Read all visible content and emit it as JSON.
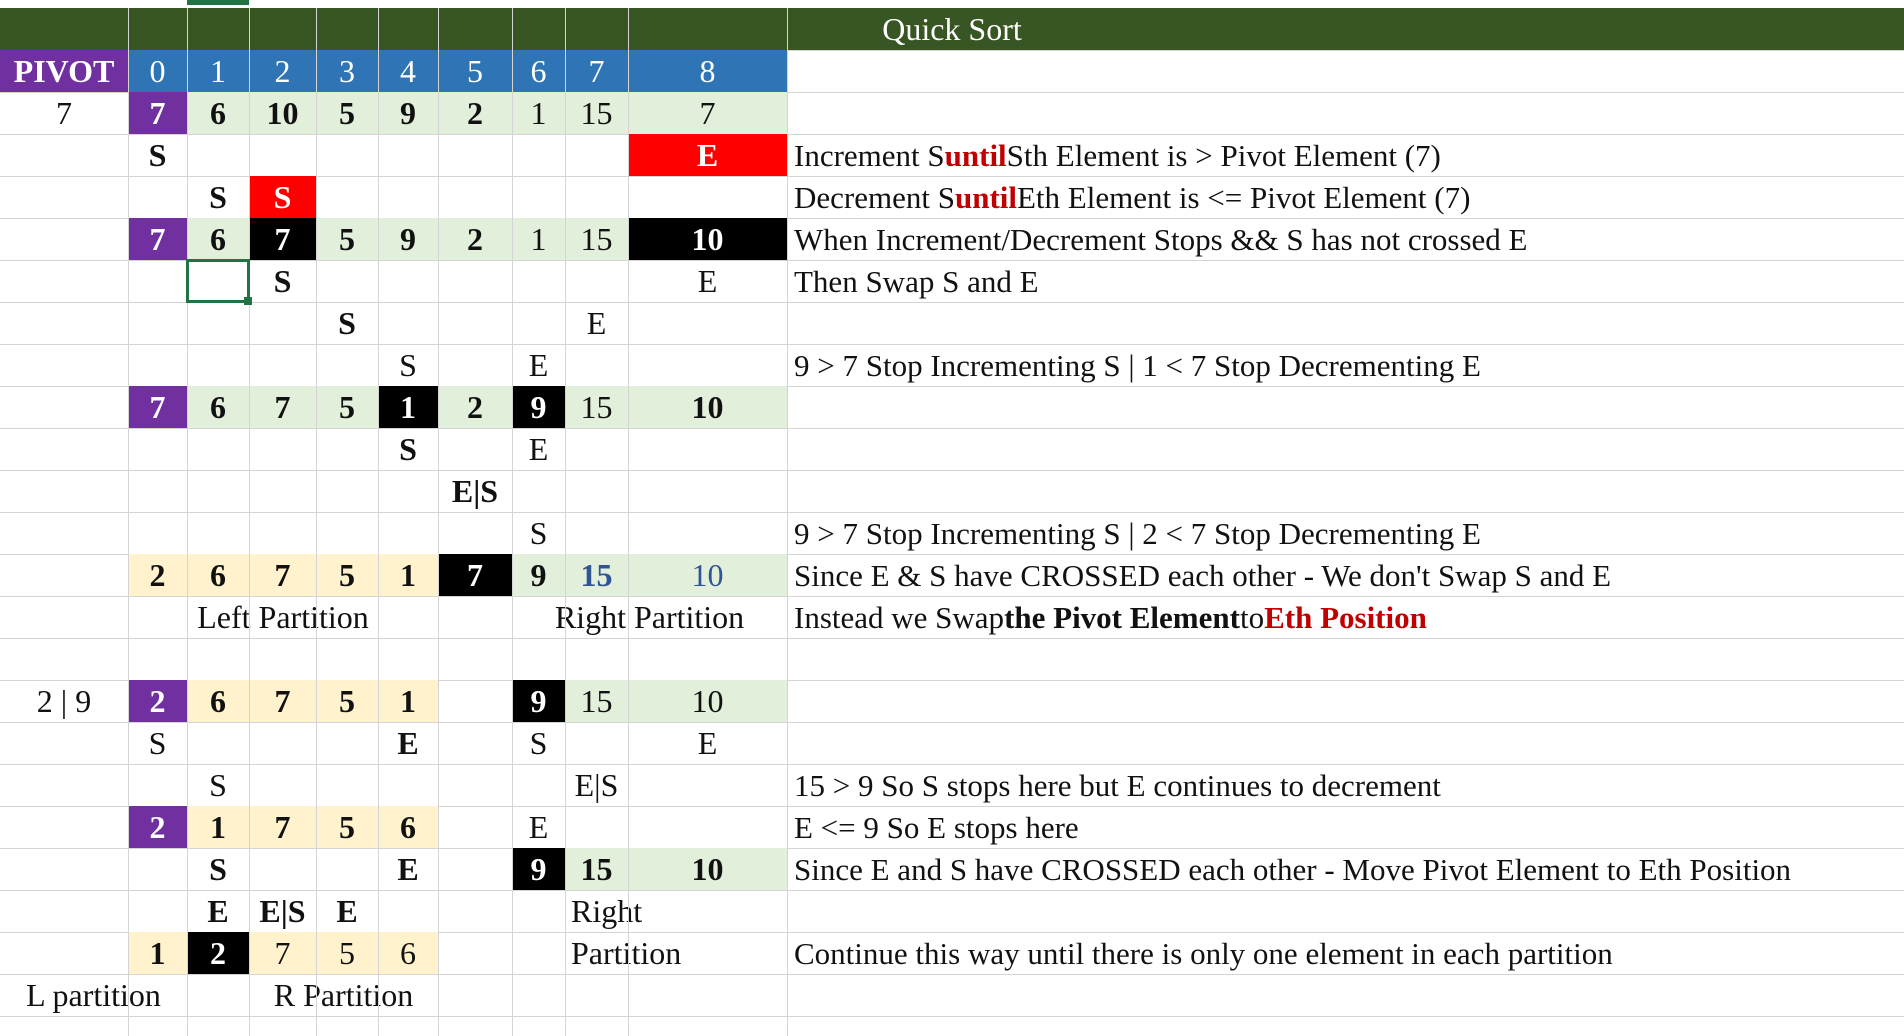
{
  "title": "Quick Sort",
  "header": {
    "pivot_label": "PIVOT",
    "indices": [
      "0",
      "1",
      "2",
      "3",
      "4",
      "5",
      "6",
      "7",
      "8"
    ]
  },
  "pivot_values": {
    "first": "7",
    "second": "2 | 9"
  },
  "grid": {
    "r1": [
      "7",
      "6",
      "10",
      "5",
      "9",
      "2",
      "1",
      "15",
      "7"
    ],
    "r2": {
      "c0": "S",
      "c8": "E"
    },
    "r3": {
      "c1": "S",
      "c2": "S"
    },
    "r4": [
      "7",
      "6",
      "7",
      "5",
      "9",
      "2",
      "1",
      "15",
      "10"
    ],
    "r5": {
      "c2": "S",
      "c8": "E"
    },
    "r6": {
      "c3": "S",
      "c7": "E"
    },
    "r7": {
      "c4": "S",
      "c6": "E"
    },
    "r8": [
      "7",
      "6",
      "7",
      "5",
      "1",
      "2",
      "9",
      "15",
      "10"
    ],
    "r9": {
      "c4": "S",
      "c6": "E"
    },
    "r10": {
      "c5": "E|S"
    },
    "r11": {
      "c6": "S"
    },
    "r12": [
      "2",
      "6",
      "7",
      "5",
      "1",
      "7",
      "9",
      "15",
      "10"
    ],
    "r13": {
      "left": "Left Partition",
      "right": "Right Partition"
    },
    "r15": [
      "2",
      "6",
      "7",
      "5",
      "1",
      "",
      "9",
      "15",
      "10"
    ],
    "r16": {
      "c0": "S",
      "c4": "E",
      "c6": "S",
      "c8": "E"
    },
    "r17": {
      "c1": "S",
      "c7": "E|S"
    },
    "r18": {
      "c0": "2",
      "c1": "1",
      "c2": "7",
      "c3": "5",
      "c4": "6",
      "c6": "E"
    },
    "r19": {
      "c1": "S",
      "c4": "E",
      "c6": "9",
      "c7": "15",
      "c8": "10"
    },
    "r20": {
      "c1": "E",
      "c2": "E|S",
      "c3": "E",
      "right": "Right"
    },
    "r21": {
      "c0": "1",
      "c1": "2",
      "c2": "7",
      "c3": "5",
      "c4": "6",
      "right": "Partition"
    },
    "r22": {
      "left": "L partition",
      "right": "R Partition"
    }
  },
  "notes": {
    "n1": {
      "a": "Increment S ",
      "b": "until",
      "c": " Sth Element is > Pivot Element (7)"
    },
    "n2": {
      "a": "Decrement S ",
      "b": "until",
      "c": " Eth Element is <= Pivot Element (7)"
    },
    "n3": "When Increment/Decrement Stops && S has not crossed E",
    "n4": "Then Swap S and E",
    "n5": "9 > 7 Stop Incrementing S  | 1 < 7 Stop Decrementing E",
    "n6": "9 > 7 Stop Incrementing S  | 2 < 7 Stop Decrementing E",
    "n7": "Since E & S have CROSSED each other - We don't Swap S and E",
    "n8": {
      "a": "Instead we Swap ",
      "b": "the Pivot Element",
      "c": " to ",
      "d": "Eth Position"
    },
    "n9": "15 > 9 So S stops here but E continues to decrement",
    "n10": "E <= 9 So E stops here",
    "n11": "Since E and S have CROSSED each other - Move Pivot Element to Eth Position",
    "n12": "Continue this way until there is only one element in each partition"
  },
  "colors": {
    "title_bg": "#375623",
    "header_bg": "#2f75b5",
    "pivot": "#7030a0",
    "green": "#e2efda",
    "tan": "#fff2cc",
    "red": "#ff0000",
    "accent_text": "#c00000"
  }
}
